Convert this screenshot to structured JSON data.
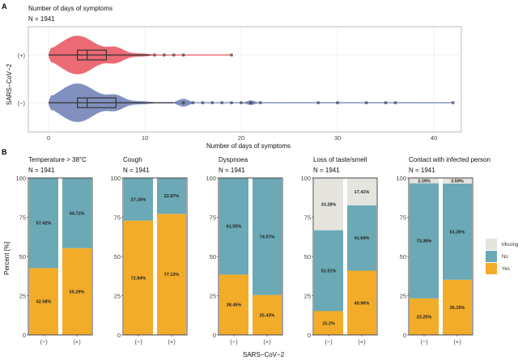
{
  "colors": {
    "positive": "#E8505B",
    "negative": "#6B7DB3",
    "yes": "#F2AC29",
    "no": "#6AA9B5",
    "missing": "#E5E4DE"
  },
  "chart_data": [
    {
      "type": "violin-box",
      "panel_label": "A",
      "title": "Number of days of symptoms",
      "subtitle": "N = 1941",
      "xlabel": "Number of days of symptoms",
      "ylabel": "SARS−CoV−2",
      "xlim": [
        -2,
        43
      ],
      "xticks": [
        0,
        10,
        20,
        30,
        40
      ],
      "grid": true,
      "groups": [
        {
          "label": "(+)",
          "q1": 3,
          "median": 4,
          "q3": 6,
          "whisker_low": 0,
          "whisker_high": 10.5,
          "outliers": [
            11,
            12,
            13,
            14,
            19
          ]
        },
        {
          "label": "(−)",
          "q1": 3,
          "median": 4,
          "q3": 7,
          "whisker_low": 0,
          "whisker_high": 13,
          "outliers": [
            14,
            15,
            16,
            17,
            18,
            19,
            20,
            21,
            22,
            28,
            30,
            33,
            35,
            36,
            42
          ]
        }
      ]
    },
    {
      "type": "stacked-bar",
      "panel_label": "B",
      "ylabel": "Percent [%]",
      "xlabel": "SARS−CoV−2",
      "ylim": [
        0,
        100
      ],
      "yticks": [
        0,
        25,
        50,
        75,
        100
      ],
      "categories": [
        "(−)",
        "(+)"
      ],
      "legend": [
        "Missing",
        "No",
        "Yes"
      ],
      "legend_position": "right",
      "panels": [
        {
          "title": "Temperature > 38°C",
          "subtitle": "N = 1941",
          "yes": [
            42.58,
            55.29
          ],
          "no": [
            57.42,
            44.71
          ],
          "missing": [
            0,
            0
          ]
        },
        {
          "title": "Cough",
          "subtitle": "N = 1941",
          "yes": [
            72.84,
            77.13
          ],
          "no": [
            27.16,
            22.87
          ],
          "missing": [
            0,
            0
          ]
        },
        {
          "title": "Dyspnoea",
          "subtitle": "N = 1941",
          "yes": [
            38.45,
            25.43
          ],
          "no": [
            61.55,
            74.57
          ],
          "missing": [
            0,
            0
          ]
        },
        {
          "title": "Loss of taste/smell",
          "subtitle": "N = 1941",
          "yes": [
            15.2,
            40.96
          ],
          "no": [
            51.51,
            41.64
          ],
          "missing": [
            33.28,
            17.41
          ]
        },
        {
          "title": "Contact with infected person",
          "subtitle": "N = 1941",
          "yes": [
            23.25,
            35.15
          ],
          "no": [
            73.36,
            61.26
          ],
          "missing": [
            3.39,
            3.59
          ]
        }
      ]
    }
  ]
}
